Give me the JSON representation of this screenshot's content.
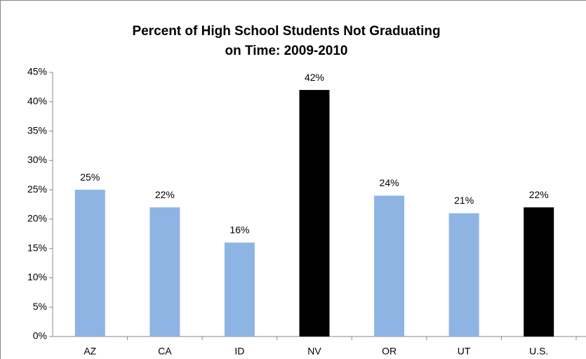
{
  "chart_data": {
    "type": "bar",
    "title": [
      "Percent of High School Students Not Graduating",
      "on Time: 2009-2010"
    ],
    "categories": [
      "AZ",
      "CA",
      "ID",
      "NV",
      "OR",
      "UT",
      "U.S."
    ],
    "values": [
      25,
      22,
      16,
      42,
      24,
      21,
      22
    ],
    "value_labels": [
      "25%",
      "22%",
      "16%",
      "42%",
      "24%",
      "21%",
      "22%"
    ],
    "colors": [
      "#8eb4e3",
      "#8eb4e3",
      "#8eb4e3",
      "#000000",
      "#8eb4e3",
      "#8eb4e3",
      "#000000"
    ],
    "ylim": [
      0,
      45
    ],
    "yticks": [
      {
        "value": 0,
        "label": "0%"
      },
      {
        "value": 5,
        "label": "5%"
      },
      {
        "value": 10,
        "label": "10%"
      },
      {
        "value": 15,
        "label": "15%"
      },
      {
        "value": 20,
        "label": "20%"
      },
      {
        "value": 25,
        "label": "25%"
      },
      {
        "value": 30,
        "label": "30%"
      },
      {
        "value": 35,
        "label": "35%"
      },
      {
        "value": 40,
        "label": "40%"
      },
      {
        "value": 45,
        "label": "45%"
      }
    ],
    "grid": false
  }
}
